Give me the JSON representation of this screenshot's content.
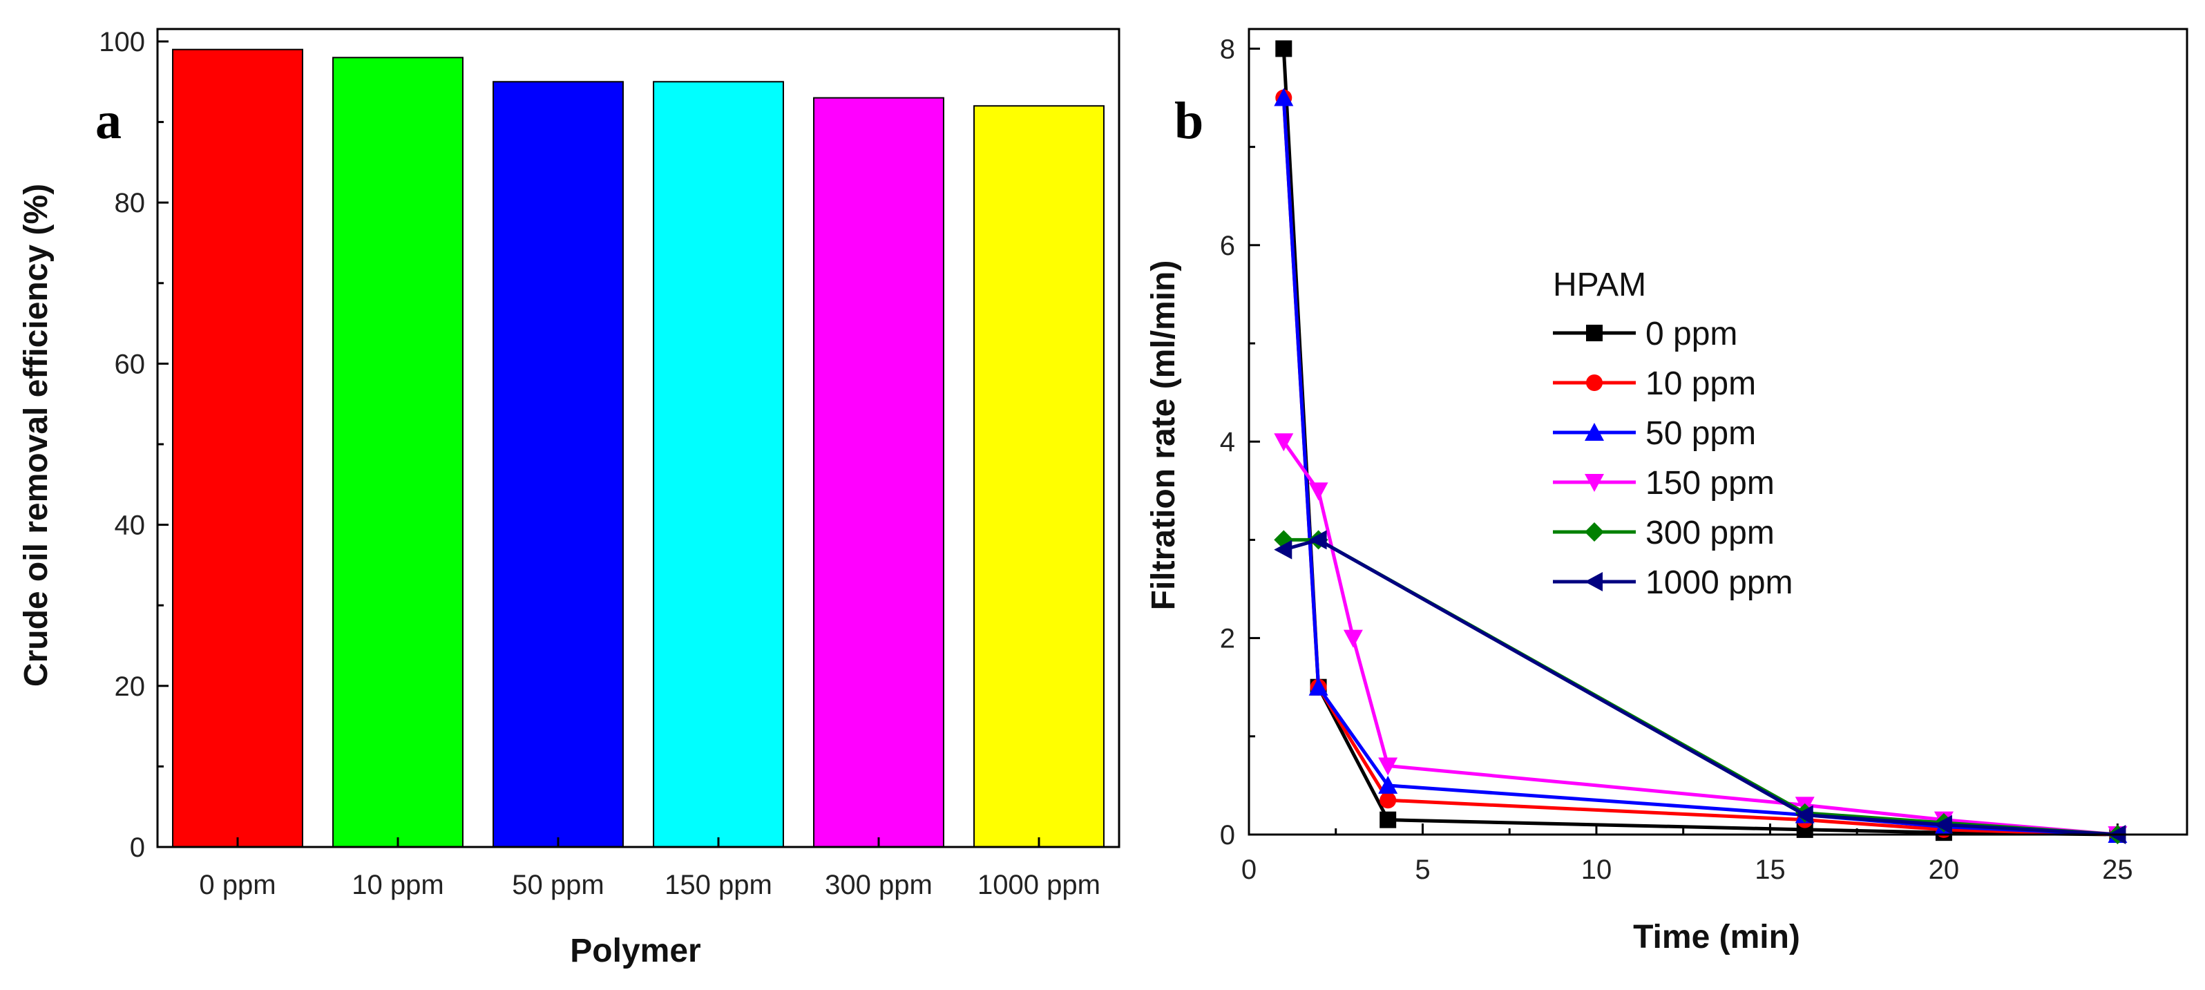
{
  "chart_data": [
    {
      "type": "bar",
      "panel_label": "a",
      "categories": [
        "0 ppm",
        "10 ppm",
        "50 ppm",
        "150 ppm",
        "300 ppm",
        "1000 ppm"
      ],
      "values": [
        99,
        98,
        95,
        95,
        93,
        92
      ],
      "colors": [
        "#ff0000",
        "#00ff00",
        "#0000ff",
        "#00ffff",
        "#ff00ff",
        "#ffff00"
      ],
      "xlabel": "Polymer",
      "ylabel": "Crude oil removal efficiency (%)",
      "ylim": [
        0,
        100
      ],
      "yticks": [
        0,
        20,
        40,
        60,
        80,
        100
      ]
    },
    {
      "type": "line",
      "panel_label": "b",
      "xlabel": "Time (min)",
      "ylabel": "Filtration rate (ml/min)",
      "xlim": [
        0,
        27
      ],
      "ylim": [
        0,
        8.2
      ],
      "xticks": [
        0,
        5,
        10,
        15,
        20,
        25
      ],
      "yticks": [
        0,
        2,
        4,
        6,
        8
      ],
      "legend_title": "HPAM",
      "legend_position": "center-right",
      "series": [
        {
          "name": "0 ppm",
          "color": "#000000",
          "marker": "square",
          "x": [
            1,
            2,
            4,
            16,
            20,
            25
          ],
          "y": [
            8.0,
            1.5,
            0.15,
            0.05,
            0.02,
            0.0
          ]
        },
        {
          "name": "10 ppm",
          "color": "#ff0000",
          "marker": "circle",
          "x": [
            1,
            2,
            4,
            16,
            20,
            25
          ],
          "y": [
            7.5,
            1.5,
            0.35,
            0.15,
            0.05,
            0.0
          ]
        },
        {
          "name": "50 ppm",
          "color": "#0000ff",
          "marker": "triangle-up",
          "x": [
            1,
            2,
            4,
            16,
            20,
            25
          ],
          "y": [
            7.5,
            1.5,
            0.5,
            0.2,
            0.08,
            0.0
          ]
        },
        {
          "name": "150 ppm",
          "color": "#ff00ff",
          "marker": "triangle-down",
          "x": [
            1,
            2,
            3,
            4,
            16,
            20,
            25
          ],
          "y": [
            4.0,
            3.5,
            2.0,
            0.7,
            0.3,
            0.15,
            0.0
          ]
        },
        {
          "name": "300 ppm",
          "color": "#008000",
          "marker": "diamond",
          "x": [
            1,
            2,
            16,
            20,
            25
          ],
          "y": [
            3.0,
            3.0,
            0.22,
            0.12,
            0.0
          ]
        },
        {
          "name": "1000 ppm",
          "color": "#000080",
          "marker": "triangle-left",
          "x": [
            1,
            2,
            16,
            20,
            25
          ],
          "y": [
            2.9,
            3.0,
            0.2,
            0.1,
            0.0
          ]
        }
      ]
    }
  ]
}
